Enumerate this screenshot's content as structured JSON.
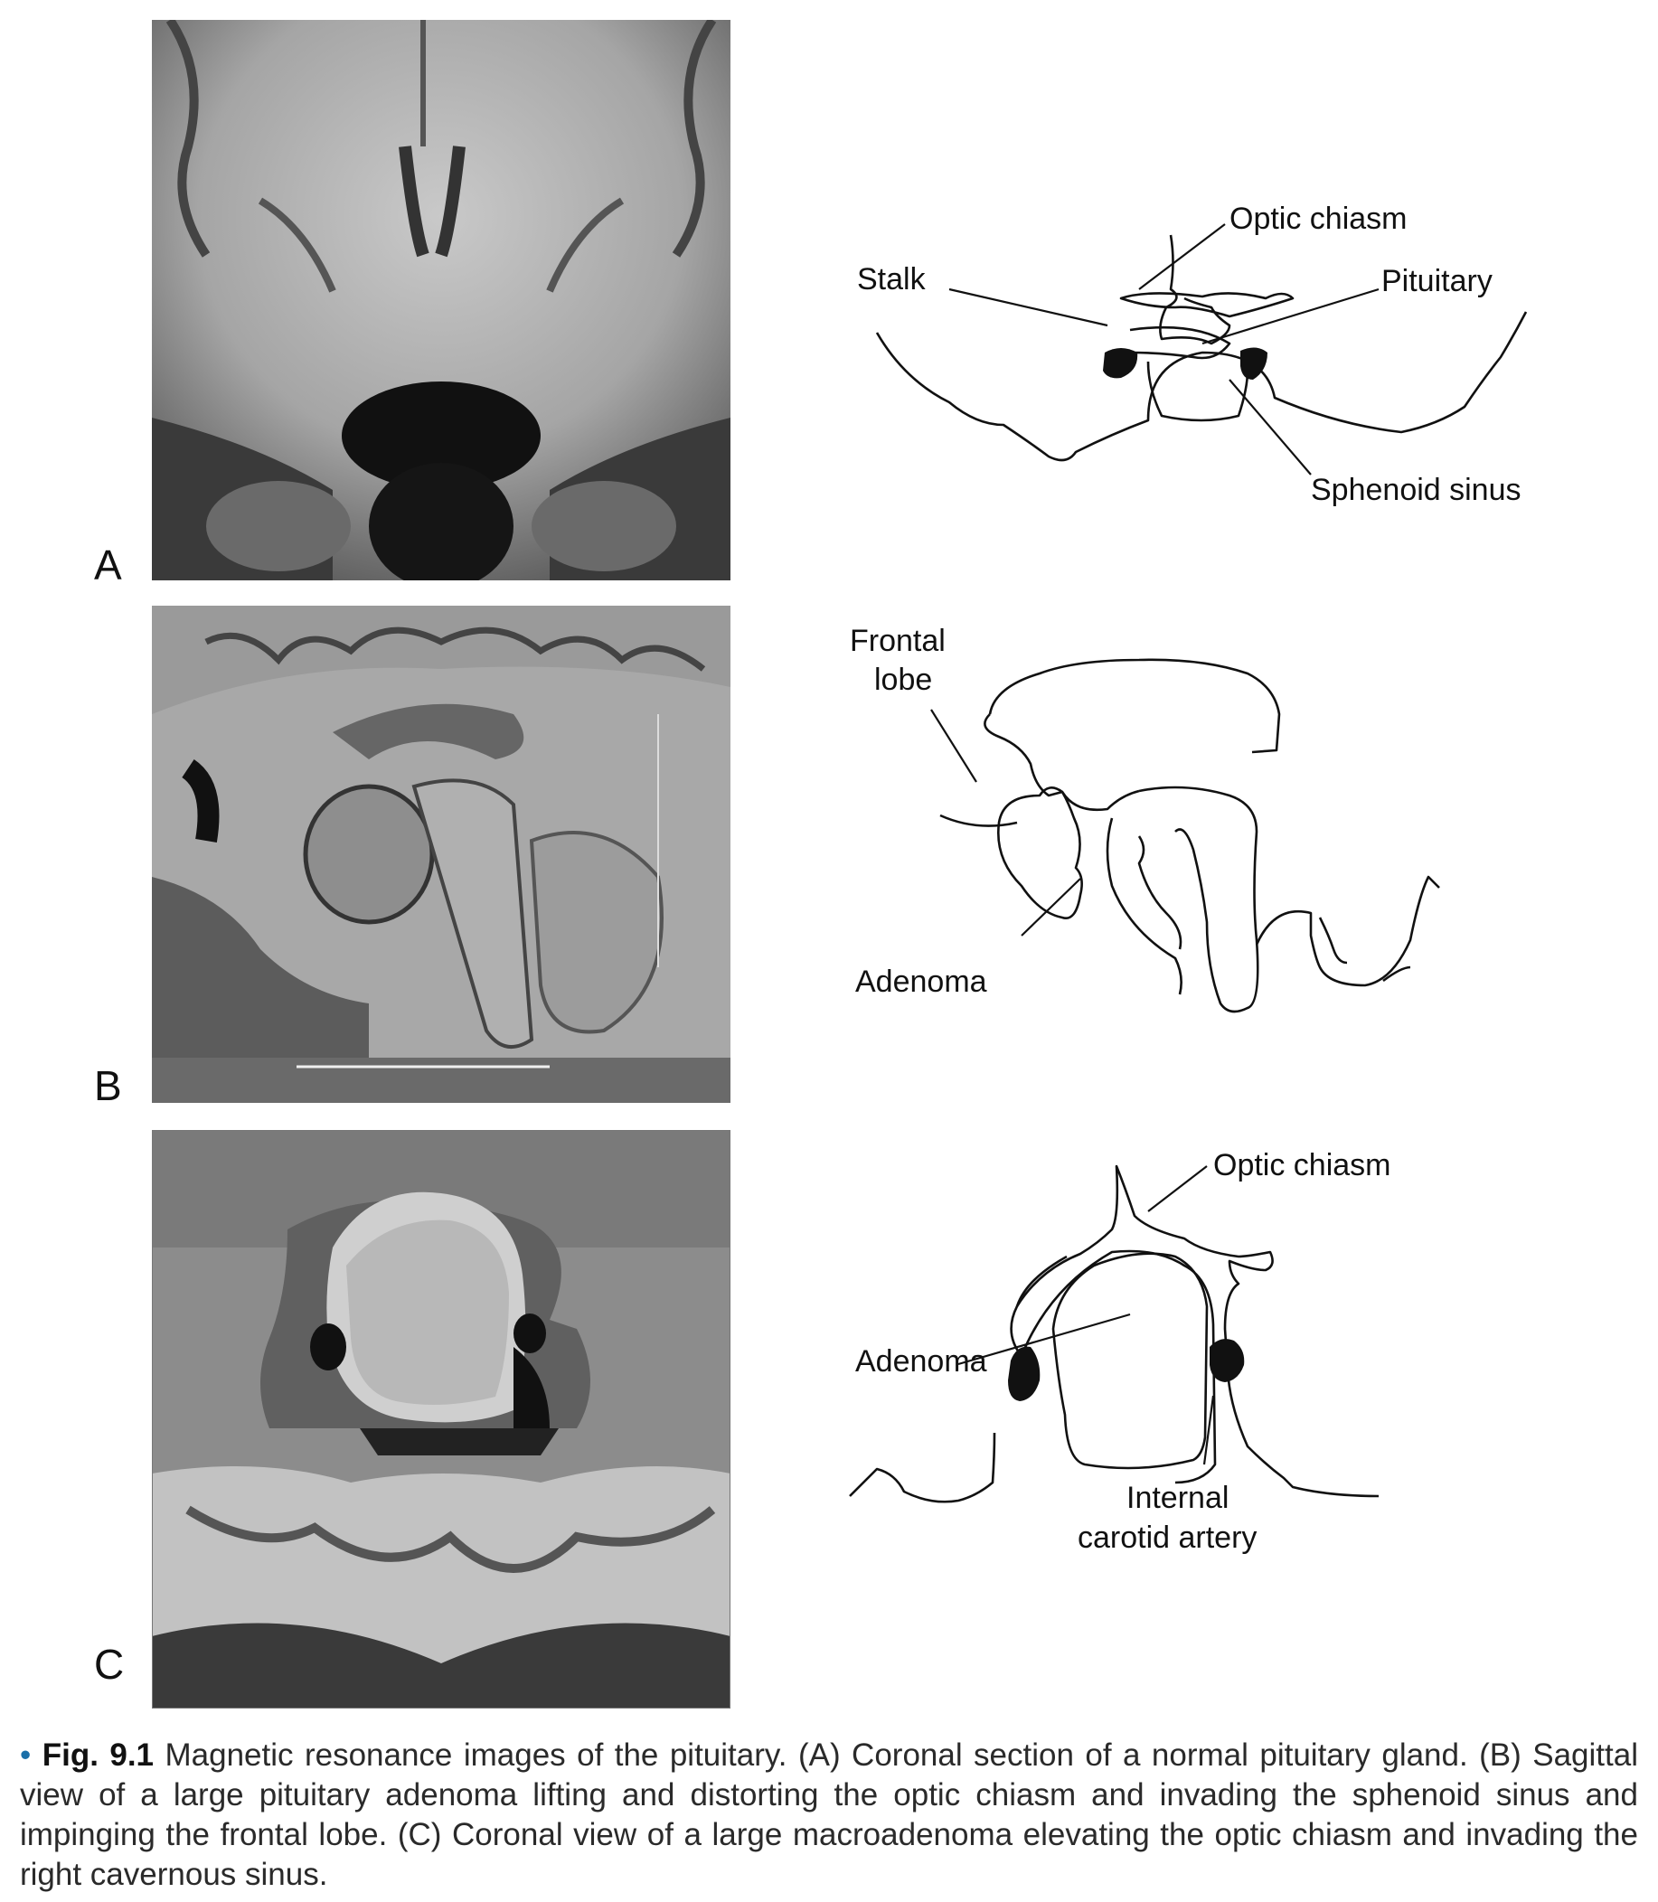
{
  "panels": [
    {
      "letter": "A",
      "labels": {
        "optic_chiasm": "Optic chiasm",
        "stalk": "Stalk",
        "pituitary": "Pituitary",
        "sphenoid_sinus": "Sphenoid sinus"
      }
    },
    {
      "letter": "B",
      "labels": {
        "frontal_lobe_line1": "Frontal",
        "frontal_lobe_line2": "lobe",
        "adenoma": "Adenoma"
      }
    },
    {
      "letter": "C",
      "labels": {
        "optic_chiasm": "Optic chiasm",
        "adenoma": "Adenoma",
        "ica_line1": "Internal",
        "ica_line2": "carotid artery"
      }
    }
  ],
  "caption": {
    "bullet": "•",
    "figure_label": "Fig. 9.1",
    "text": "Magnetic resonance images of the pituitary. (A) Coronal section of a normal pituitary gland. (B) Sagittal view of a large pituitary adenoma lifting and distorting the optic chiasm and invading the sphenoid sinus and impinging the frontal lobe. (C) Coronal view of a large macroadenoma elevating the optic chiasm and invading the right cavernous sinus."
  },
  "colors": {
    "caption_bullet": "#1a6fa8",
    "ink": "#111111"
  }
}
